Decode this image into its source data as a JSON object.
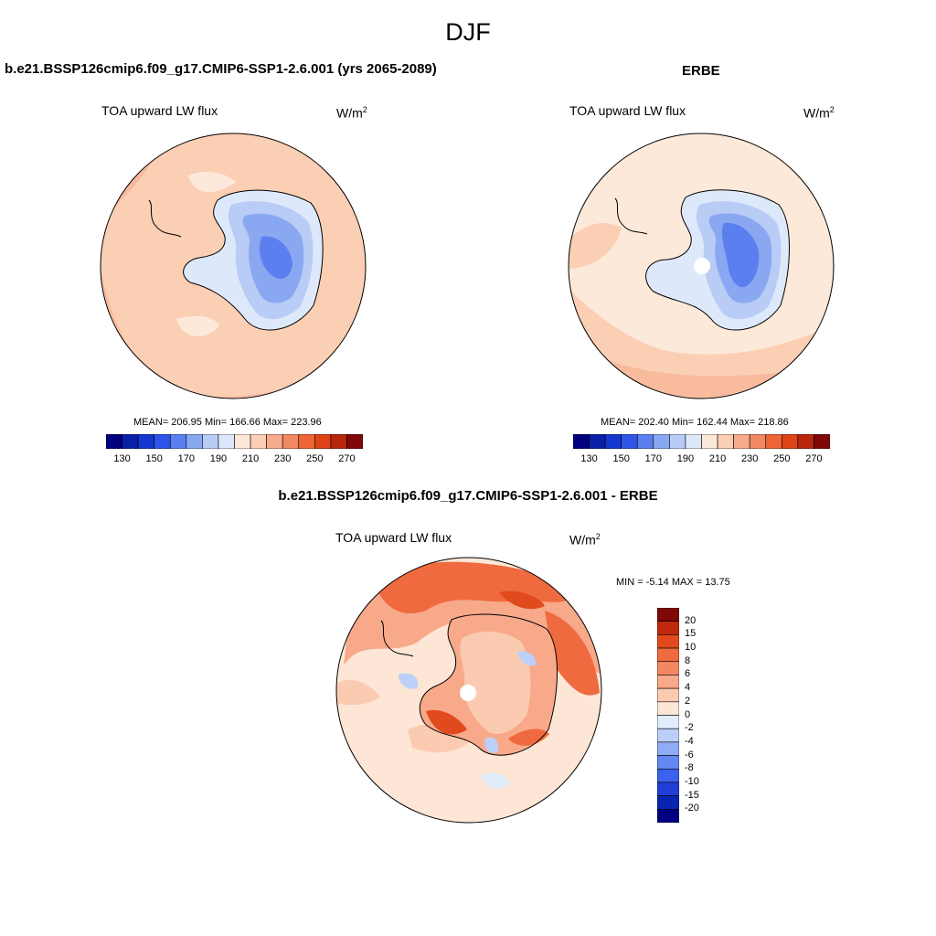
{
  "figure": {
    "title": "DJF"
  },
  "panels": [
    {
      "title": "b.e21.BSSP126cmip6.f09_g17.CMIP6-SSP1-2.6.001 (yrs 2065-2089)",
      "variable": "TOA upward LW flux",
      "units_base": "W/m",
      "units_exp": "2",
      "stats": "MEAN= 206.95  Min= 166.66  Max= 223.96"
    },
    {
      "title": "ERBE",
      "variable": "TOA upward LW flux",
      "units_base": "W/m",
      "units_exp": "2",
      "stats": "MEAN= 202.40  Min= 162.44  Max= 218.86"
    },
    {
      "title": "b.e21.BSSP126cmip6.f09_g17.CMIP6-SSP1-2.6.001 - ERBE",
      "variable": "TOA upward LW flux",
      "units_base": "W/m",
      "units_exp": "2",
      "stats": "MIN =  -5.14 MAX =  13.75"
    }
  ],
  "colorbar_abs": {
    "colors": [
      "#000080",
      "#0a1fa8",
      "#1538d0",
      "#2f54e8",
      "#5c7ff0",
      "#8aa8f2",
      "#b8ccf6",
      "#dde9fb",
      "#fde9d9",
      "#fbcfb4",
      "#f6ac8c",
      "#f28963",
      "#ef6535",
      "#df4416",
      "#b8260c",
      "#800808"
    ],
    "labels": [
      "130",
      "150",
      "170",
      "190",
      "210",
      "230",
      "250",
      "270"
    ]
  },
  "colorbar_diff": {
    "colors": [
      "#000080",
      "#0a24b2",
      "#1f3fd8",
      "#3a62ee",
      "#6487f2",
      "#91abf5",
      "#bccff8",
      "#e2edfc",
      "#fde6d6",
      "#fbcbb1",
      "#f7a98a",
      "#f38763",
      "#ef6a3e",
      "#e14a1c",
      "#c0290c",
      "#800808"
    ],
    "labels": [
      "20",
      "15",
      "10",
      "8",
      "6",
      "4",
      "2",
      "0",
      "-2",
      "-4",
      "-6",
      "-8",
      "-10",
      "-15",
      "-20"
    ]
  }
}
